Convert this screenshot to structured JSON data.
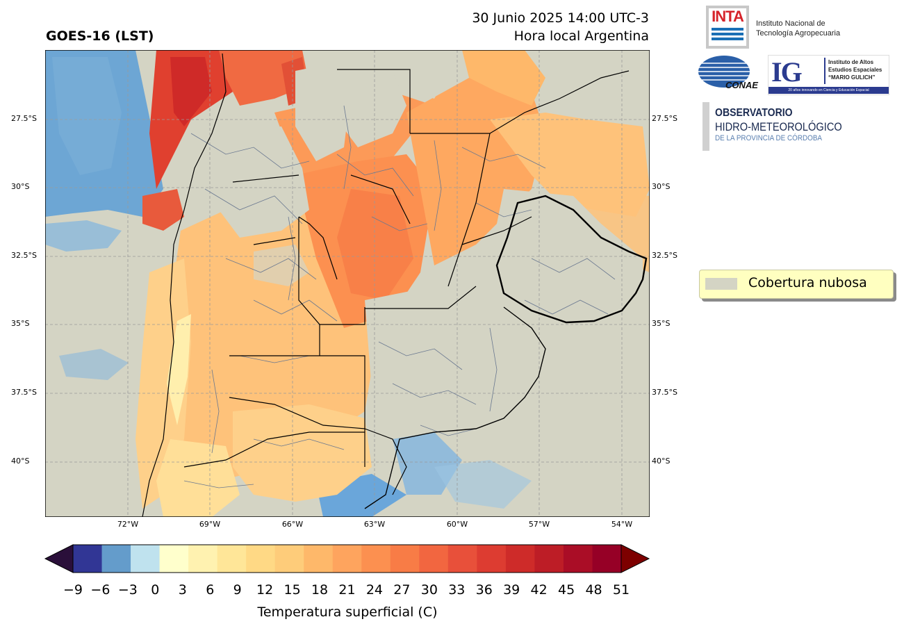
{
  "header": {
    "title": "GOES-16 (LST)",
    "date_line1": "30 Junio 2025 14:00 UTC-3",
    "date_line2": "Hora local Argentina"
  },
  "map": {
    "background_color": "#d4d4c4",
    "lat_ticks": [
      "27.5°S",
      "30°S",
      "32.5°S",
      "35°S",
      "37.5°S",
      "40°S"
    ],
    "lon_ticks": [
      "72°W",
      "69°W",
      "66°W",
      "63°W",
      "60°W",
      "57°W",
      "54°W"
    ]
  },
  "legend": {
    "label": "Cobertura nubosa",
    "color": "#d4d4c4"
  },
  "colorbar": {
    "label": "Temperatura superficial (C)",
    "ticks": [
      "−9",
      "−6",
      "−3",
      "0",
      "3",
      "6",
      "9",
      "12",
      "15",
      "18",
      "21",
      "24",
      "27",
      "30",
      "33",
      "36",
      "39",
      "42",
      "45",
      "48",
      "51"
    ],
    "under_color": "#2a0f3a",
    "over_color": "#7d0000",
    "colors": [
      "#313695",
      "#649ccb",
      "#bfe2ee",
      "#ffffcc",
      "#fff2b0",
      "#ffe698",
      "#ffd985",
      "#fecc7a",
      "#feb86a",
      "#fea45e",
      "#fc9050",
      "#f87c46",
      "#f26640",
      "#e8503a",
      "#dd3c31",
      "#ce2b29",
      "#bd1d26",
      "#aa0d26",
      "#960026"
    ]
  },
  "logos": {
    "inta_mark": "INTA",
    "inta_line1": "Instituto Nacional de",
    "inta_line2": "Tecnología Agropecuaria",
    "conae_mark": "CONAE",
    "ig_mark": "IG",
    "ig_line1": "Instituto de Altos",
    "ig_line2": "Estudios Espaciales",
    "ig_line3": "“MARIO GULICH”",
    "ig_footer": "20 años innovando en Ciencia y Educación Espacial",
    "obs_line1": "OBSERVATORIO",
    "obs_line2": "HIDRO-METEOROLÓGICO",
    "obs_line3": "DE LA PROVINCIA DE CÓRDOBA"
  }
}
